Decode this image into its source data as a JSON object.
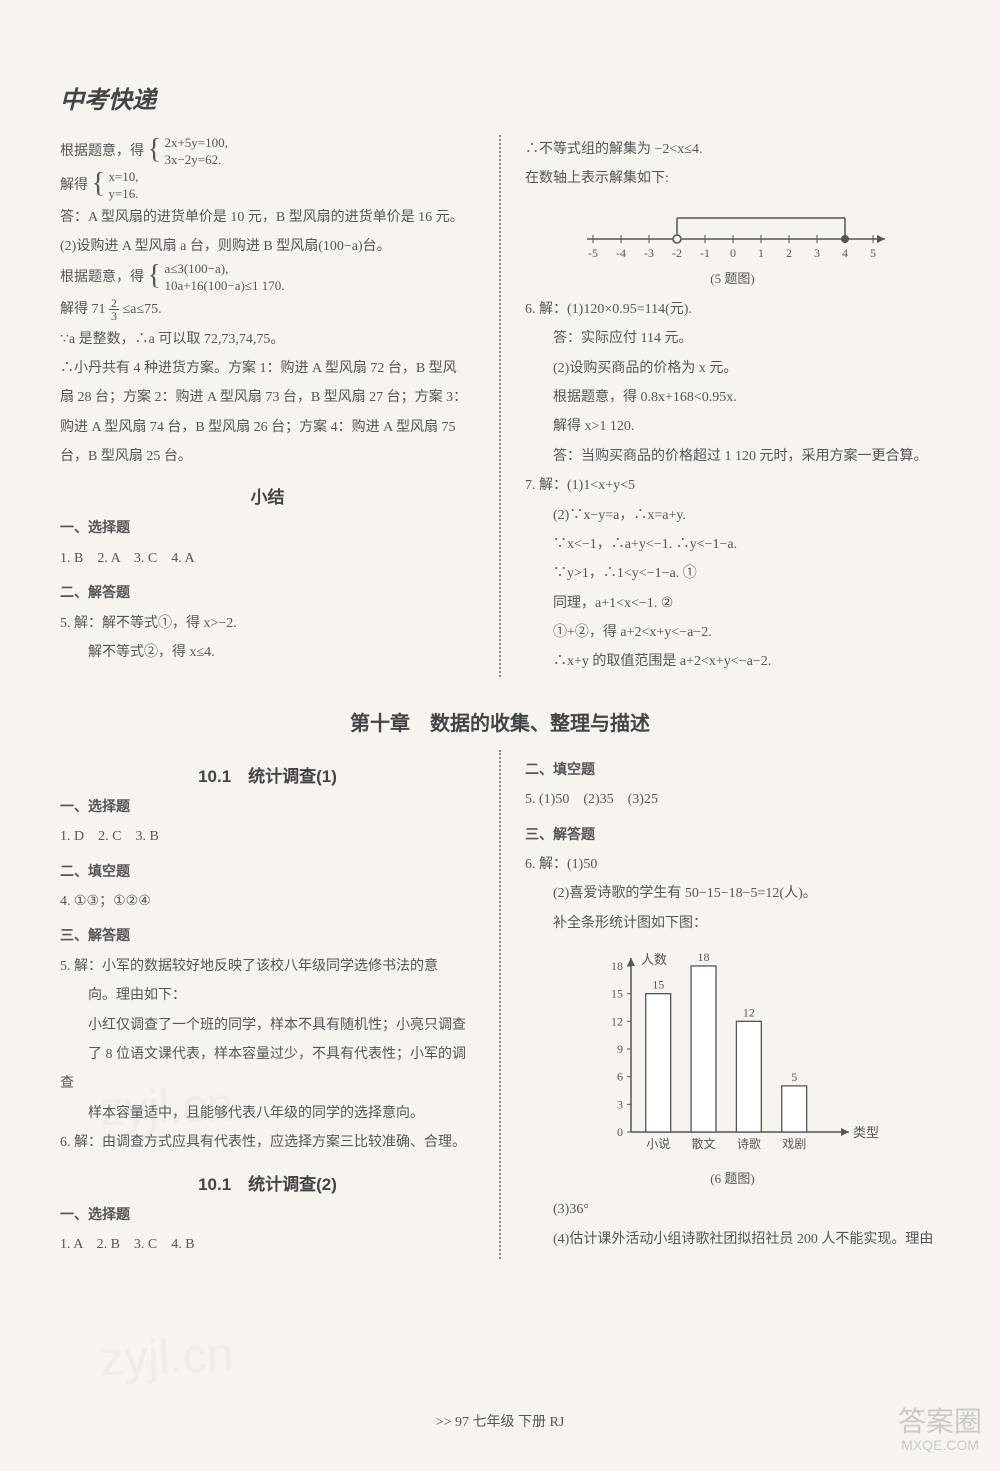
{
  "page": {
    "header_title": "中考快递",
    "footer": ">> 97 七年级 下册 RJ",
    "chapter_heading": "第十章　数据的收集、整理与描述",
    "watermark_text": "zyjl.cn",
    "corner_wm_top": "答案圈",
    "corner_wm_sub": "MXQE.COM"
  },
  "top": {
    "left": {
      "l1_pre": "根据题意，得",
      "l1_eq_top": "2x+5y=100,",
      "l1_eq_bot": "3x−2y=62.",
      "l2_pre": "解得",
      "l2_eq_top": "x=10,",
      "l2_eq_bot": "y=16.",
      "l3": "答：A 型风扇的进货单价是 10 元，B 型风扇的进货单价是 16 元。",
      "l4": "(2)设购进 A 型风扇 a 台，则购进 B 型风扇(100−a)台。",
      "l5_pre": "根据题意，得",
      "l5_eq_top": "a≤3(100−a),",
      "l5_eq_bot": "10a+16(100−a)≤1 170.",
      "l6_pre": "解得 71",
      "l6_frac_num": "2",
      "l6_frac_den": "3",
      "l6_post": "≤a≤75.",
      "l7": "∵a 是整数，∴a 可以取 72,73,74,75。",
      "l8": "∴小丹共有 4 种进货方案。方案 1：购进 A 型风扇 72 台，B 型风",
      "l9": "扇 28 台；方案 2：购进 A 型风扇 73 台，B 型风扇 27 台；方案 3：",
      "l10": "购进 A 型风扇 74 台，B 型风扇 26 台；方案 4：购进 A 型风扇 75",
      "l11": "台，B 型风扇 25 台。",
      "xiaojie": "小结",
      "h_choice": "一、选择题",
      "choice_ans": "1. B　2. A　3. C　4. A",
      "h_answer": "二、解答题",
      "q5a": "5. 解：解不等式①，得 x>−2.",
      "q5b": "　　解不等式②，得 x≤4."
    },
    "right": {
      "r1": "∴不等式组的解集为 −2<x≤4.",
      "r2": "在数轴上表示解集如下:",
      "numberline": {
        "min": -5,
        "max": 5,
        "open_at": -2,
        "closed_at": 4,
        "ticks": [
          -5,
          -4,
          -3,
          -2,
          -1,
          0,
          1,
          2,
          3,
          4,
          5
        ],
        "line_color": "#555",
        "open_fill": "#f7f4f0"
      },
      "fig5": "(5 题图)",
      "q6a": "6. 解：(1)120×0.95=114(元).",
      "q6b": "　　答：实际应付 114 元。",
      "q6c": "　　(2)设购买商品的价格为 x 元。",
      "q6d": "　　根据题意，得 0.8x+168<0.95x.",
      "q6e": "　　解得 x>1 120.",
      "q6f": "　　答：当购买商品的价格超过 1 120 元时，采用方案一更合算。",
      "q7a": "7. 解：(1)1<x+y<5",
      "q7b": "　　(2)∵x−y=a，∴x=a+y.",
      "q7c": "　　∵x<−1，∴a+y<−1. ∴y<−1−a.",
      "q7d": "　　∵y>1，∴1<y<−1−a. ①",
      "q7e": "　　同理，a+1<x<−1. ②",
      "q7f": "　　①+②，得 a+2<x+y<−a−2.",
      "q7g": "　　∴x+y 的取值范围是 a+2<x+y<−a−2."
    }
  },
  "bottom": {
    "left": {
      "s101_1": "10.1　统计调查(1)",
      "h_choice": "一、选择题",
      "choice_ans": "1. D　2. C　3. B",
      "h_fill": "二、填空题",
      "fill_ans": "4. ①③；①②④",
      "h_answer": "三、解答题",
      "q5a": "5. 解：小军的数据较好地反映了该校八年级同学选修书法的意",
      "q5b": "　　向。理由如下：",
      "q5c": "　　小红仅调查了一个班的同学，样本不具有随机性；小亮只调查",
      "q5d": "　　了 8 位语文课代表，样本容量过少，不具有代表性；小军的调查",
      "q5e": "　　样本容量适中，且能够代表八年级的同学的选择意向。",
      "q6": "6. 解：由调查方式应具有代表性，应选择方案三比较准确、合理。",
      "s101_2": "10.1　统计调查(2)",
      "h_choice2": "一、选择题",
      "choice_ans2": "1. A　2. B　3. C　4. B"
    },
    "right": {
      "h_fill": "二、填空题",
      "fill_ans": "5. (1)50　(2)35　(3)25",
      "h_answer": "三、解答题",
      "q6a": "6. 解：(1)50",
      "q6b": "　　(2)喜爱诗歌的学生有 50−15−18−5=12(人)。",
      "q6c": "　　补全条形统计图如下图：",
      "bar": {
        "ylabel": "人数",
        "xlabel": "类型",
        "y_max": 18,
        "y_step": 3,
        "y_ticks": [
          0,
          3,
          6,
          9,
          12,
          15,
          18
        ],
        "categories": [
          "小说",
          "散文",
          "诗歌",
          "戏剧"
        ],
        "values": [
          15,
          18,
          12,
          5
        ],
        "bar_fill": "#ffffff",
        "bar_stroke": "#555",
        "axis_color": "#555",
        "text_color": "#555"
      },
      "fig6": "(6 题图)",
      "q6d": "　　(3)36°",
      "q6e": "　　(4)估计课外活动小组诗歌社团拟招社员 200 人不能实现。理由"
    }
  }
}
